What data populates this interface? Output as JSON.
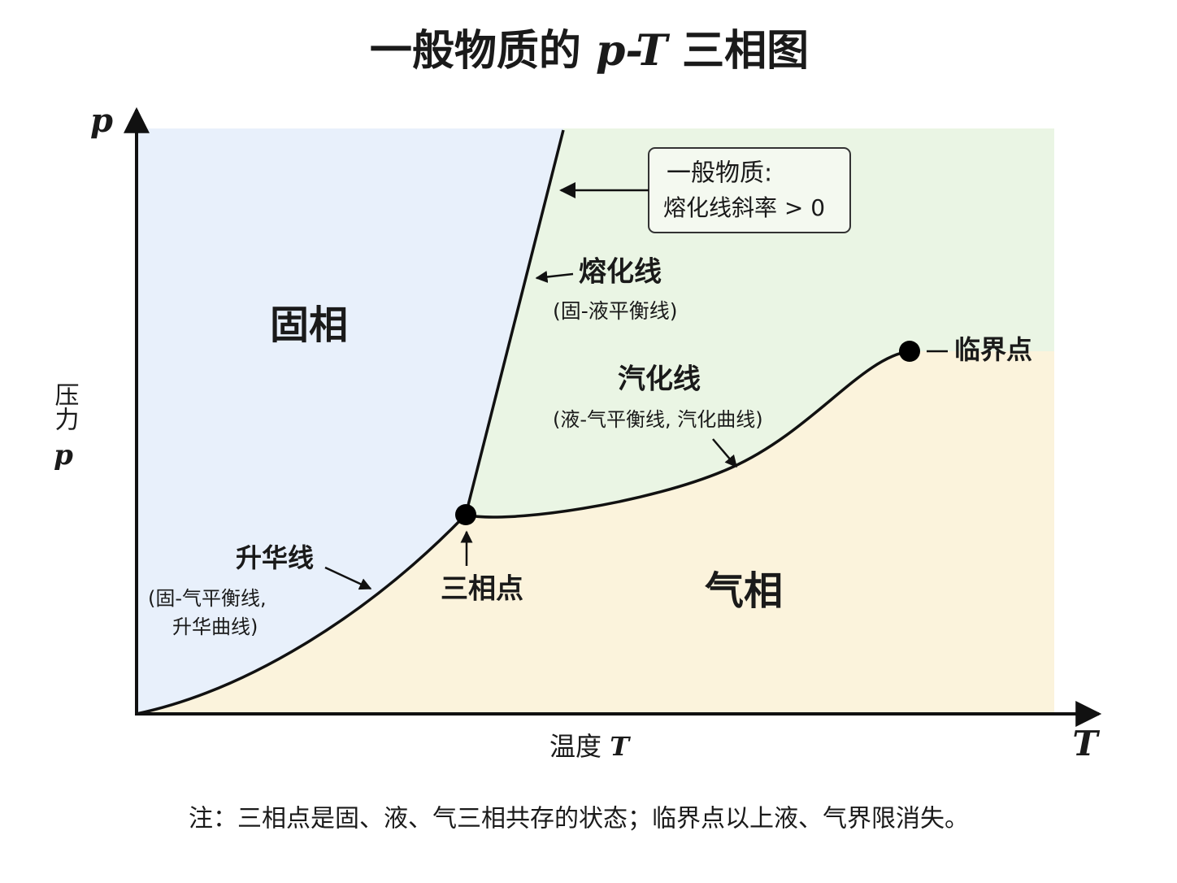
{
  "title": {
    "prefix": "一般物质的",
    "variable": "p-T",
    "suffix": "三相图"
  },
  "axes": {
    "y_symbol": "p",
    "y_label": "压力",
    "y_label_symbol": "p",
    "x_label": "温度",
    "x_label_symbol": "T",
    "x_symbol": "T"
  },
  "regions": {
    "solid": "固相",
    "gas": "气相"
  },
  "callout": {
    "line1": "一般物质:",
    "line2": "熔化线斜率 > 0"
  },
  "melting": {
    "name": "熔化线",
    "desc": "(固-液平衡线)"
  },
  "vaporization": {
    "name": "汽化线",
    "desc": "(液-气平衡线, 汽化曲线)"
  },
  "sublimation": {
    "name": "升华线",
    "desc1": "(固-气平衡线,",
    "desc2": "升华曲线)"
  },
  "points": {
    "triple": "三相点",
    "critical": "临界点"
  },
  "note": "注：三相点是固、液、气三相共存的状态；临界点以上液、气界限消失。"
}
